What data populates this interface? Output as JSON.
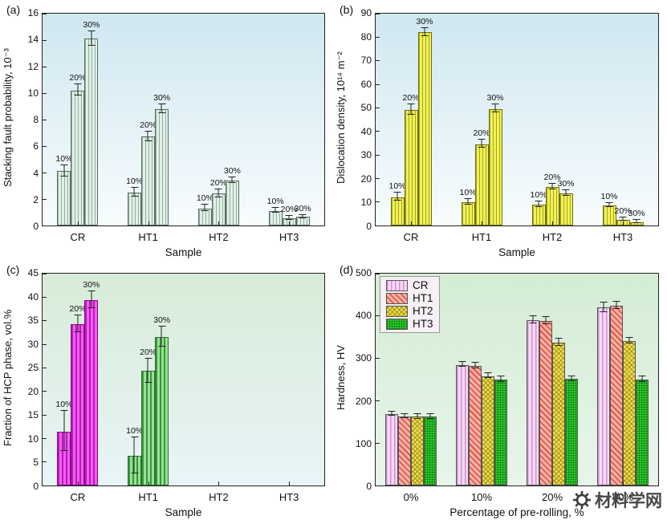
{
  "watermark": {
    "text": "材料学网"
  },
  "chart_data": [
    {
      "type": "bar",
      "panel": "(a)",
      "xlabel": "Sample",
      "ylabel": "Stacking fault probability, 10⁻³",
      "ylim": [
        0,
        16
      ],
      "ytick_step": 2,
      "categories": [
        "CR",
        "HT1",
        "HT2",
        "HT3"
      ],
      "bar_style": "a",
      "bar_labels": true,
      "plot_bg": [
        "#cfe7f0",
        "#f8fcfd"
      ],
      "series": [
        {
          "name": "10%",
          "values": [
            4.1,
            2.5,
            1.3,
            1.1
          ],
          "errors": [
            0.4,
            0.3,
            0.2,
            0.15
          ]
        },
        {
          "name": "20%",
          "values": [
            10.2,
            6.7,
            2.4,
            0.55
          ],
          "errors": [
            0.4,
            0.35,
            0.25,
            0.1
          ]
        },
        {
          "name": "30%",
          "values": [
            14.1,
            8.8,
            3.4,
            0.65
          ],
          "errors": [
            0.5,
            0.3,
            0.2,
            0.1
          ]
        }
      ]
    },
    {
      "type": "bar",
      "panel": "(b)",
      "xlabel": "Sample",
      "ylabel": "Dislocation density, 10¹⁴ m⁻²",
      "ylim": [
        0,
        90
      ],
      "ytick_step": 10,
      "categories": [
        "CR",
        "HT1",
        "HT2",
        "HT3"
      ],
      "bar_style": "b",
      "bar_labels": true,
      "plot_bg": [
        "#cfe7f0",
        "#f8fcfd"
      ],
      "series": [
        {
          "name": "10%",
          "values": [
            12,
            10,
            9,
            8.5
          ],
          "errors": [
            1.5,
            1,
            1,
            0.8
          ]
        },
        {
          "name": "20%",
          "values": [
            49,
            34.5,
            16.5,
            2.5
          ],
          "errors": [
            2,
            1.5,
            1,
            0.5
          ]
        },
        {
          "name": "30%",
          "values": [
            82,
            49.5,
            13.5,
            1.5
          ],
          "errors": [
            1.5,
            1.5,
            1,
            0.4
          ]
        }
      ]
    },
    {
      "type": "bar",
      "panel": "(c)",
      "xlabel": "Sample",
      "ylabel": "Fraction of HCP phase, vol.%",
      "ylim": [
        0,
        45
      ],
      "ytick_step": 5,
      "categories": [
        "CR",
        "HT1",
        "HT2",
        "HT3"
      ],
      "category_styles": [
        "c-cr",
        "c-ht1",
        null,
        null
      ],
      "bar_labels": true,
      "plot_bg": [
        "#d7ecd7",
        "#e9f4f8"
      ],
      "series": [
        {
          "name": "10%",
          "values": [
            11.5,
            6.3,
            null,
            null
          ],
          "errors": [
            4.2,
            3.8,
            null,
            null
          ]
        },
        {
          "name": "20%",
          "values": [
            34.3,
            24.3,
            null,
            null
          ],
          "errors": [
            1.7,
            2.5,
            null,
            null
          ]
        },
        {
          "name": "30%",
          "values": [
            39.3,
            31.5,
            null,
            null
          ],
          "errors": [
            1.7,
            2.0,
            null,
            null
          ]
        }
      ]
    },
    {
      "type": "bar",
      "panel": "(d)",
      "xlabel": "Percentage of pre-rolling, %",
      "ylabel": "Hardness, HV",
      "ylim": [
        0,
        500
      ],
      "ytick_step": 100,
      "categories": [
        "0%",
        "10%",
        "20%",
        "30%"
      ],
      "bar_labels": false,
      "legend": true,
      "plot_bg": [
        "#d4ecd4",
        "#e8f5ea"
      ],
      "series": [
        {
          "name": "CR",
          "style": "d-cr",
          "values": [
            168,
            285,
            390,
            420
          ],
          "errors": [
            4,
            5,
            8,
            10
          ]
        },
        {
          "name": "HT1",
          "style": "d-ht1",
          "values": [
            163,
            282,
            388,
            424
          ],
          "errors": [
            4,
            5,
            8,
            8
          ]
        },
        {
          "name": "HT2",
          "style": "d-ht2",
          "values": [
            162,
            258,
            337,
            341
          ],
          "errors": [
            4,
            5,
            8,
            6
          ]
        },
        {
          "name": "HT3",
          "style": "d-ht3",
          "values": [
            162,
            250,
            251,
            250
          ],
          "errors": [
            4,
            5,
            5,
            5
          ]
        }
      ]
    }
  ]
}
